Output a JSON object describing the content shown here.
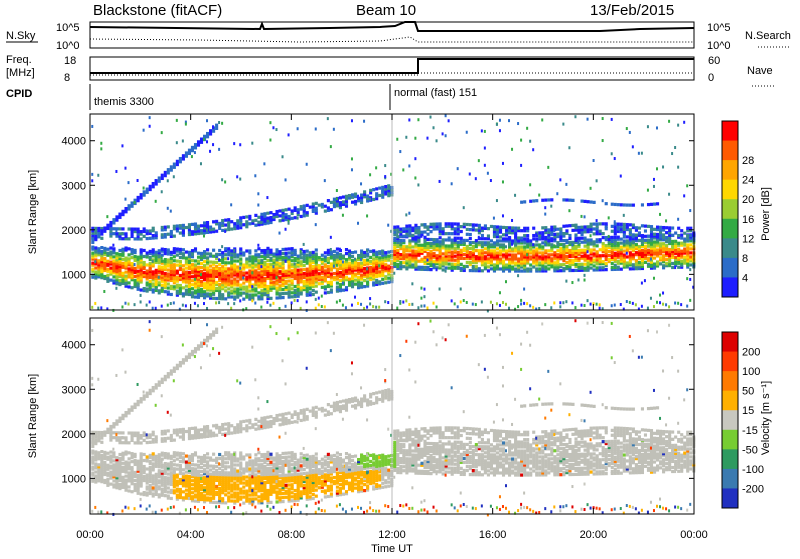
{
  "header": {
    "title": "Blackstone (fitACF)",
    "beam": "Beam 10",
    "date": "13/Feb/2015"
  },
  "status_panels": {
    "nsky_label": "N.Sky",
    "nsearch_label": "N.Search",
    "freq_label_1": "Freq.",
    "freq_label_2": "[MHz]",
    "nave_label": "Nave",
    "cpid_label": "CPID",
    "nsky_ticks": [
      "10^5",
      "10^0"
    ],
    "nsearch_ticks": [
      "10^5",
      "10^0"
    ],
    "freq_ticks": [
      "18",
      "8"
    ],
    "nave_ticks": [
      "60",
      "0"
    ],
    "cpid_segments": [
      {
        "label": "themis 3300",
        "start_hour": 0,
        "end_hour": 12
      },
      {
        "label": "normal (fast) 151",
        "start_hour": 12,
        "end_hour": 24
      }
    ]
  },
  "chart_data": [
    {
      "type": "heatmap",
      "name": "power",
      "ylabel": "Slant Range [km]",
      "xlabel": "Time UT",
      "x_ticks": [
        "00:00",
        "04:00",
        "08:00",
        "12:00",
        "16:00",
        "20:00",
        "00:00"
      ],
      "x_range_hours": [
        0,
        24
      ],
      "y_ticks": [
        1000,
        2000,
        3000,
        4000
      ],
      "ylim": [
        200,
        4600
      ],
      "colorbar": {
        "label": "Power [dB]",
        "ticks": [
          "4",
          "8",
          "12",
          "16",
          "20",
          "24",
          "28"
        ],
        "colors": [
          "#1e1eff",
          "#2b6cc8",
          "#3a8a8a",
          "#33aa44",
          "#9acd32",
          "#ffd700",
          "#ffa500",
          "#ff5a00",
          "#ff0000"
        ]
      }
    },
    {
      "type": "heatmap",
      "name": "velocity",
      "ylabel": "Slant Range [km]",
      "xlabel": "Time UT",
      "x_ticks": [
        "00:00",
        "04:00",
        "08:00",
        "12:00",
        "16:00",
        "20:00",
        "00:00"
      ],
      "x_range_hours": [
        0,
        24
      ],
      "y_ticks": [
        1000,
        2000,
        3000,
        4000
      ],
      "ylim": [
        200,
        4600
      ],
      "colorbar": {
        "label": "Velocity [m s⁻¹]",
        "ticks": [
          "200",
          "100",
          "50",
          "15",
          "-15",
          "-50",
          "-100",
          "-200"
        ],
        "colors": [
          "#2030c0",
          "#3a7ab0",
          "#2e9a60",
          "#77cc33",
          "#c8c8c0",
          "#ffb000",
          "#ff7a00",
          "#ff3a00",
          "#dd0000"
        ]
      }
    }
  ],
  "colors": {
    "ground_scatter": "#c0c0b8",
    "power_low": "#1e1eff",
    "power_high": "#ff0000",
    "velocity_neg": "#ffb000"
  }
}
